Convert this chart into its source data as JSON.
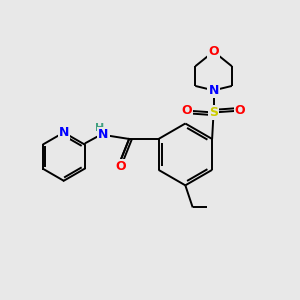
{
  "background_color": "#e8e8e8",
  "bond_color": "#000000",
  "atom_colors": {
    "O": "#ff0000",
    "N": "#0000ff",
    "S": "#cccc00",
    "H": "#40a080",
    "C": "#000000"
  }
}
